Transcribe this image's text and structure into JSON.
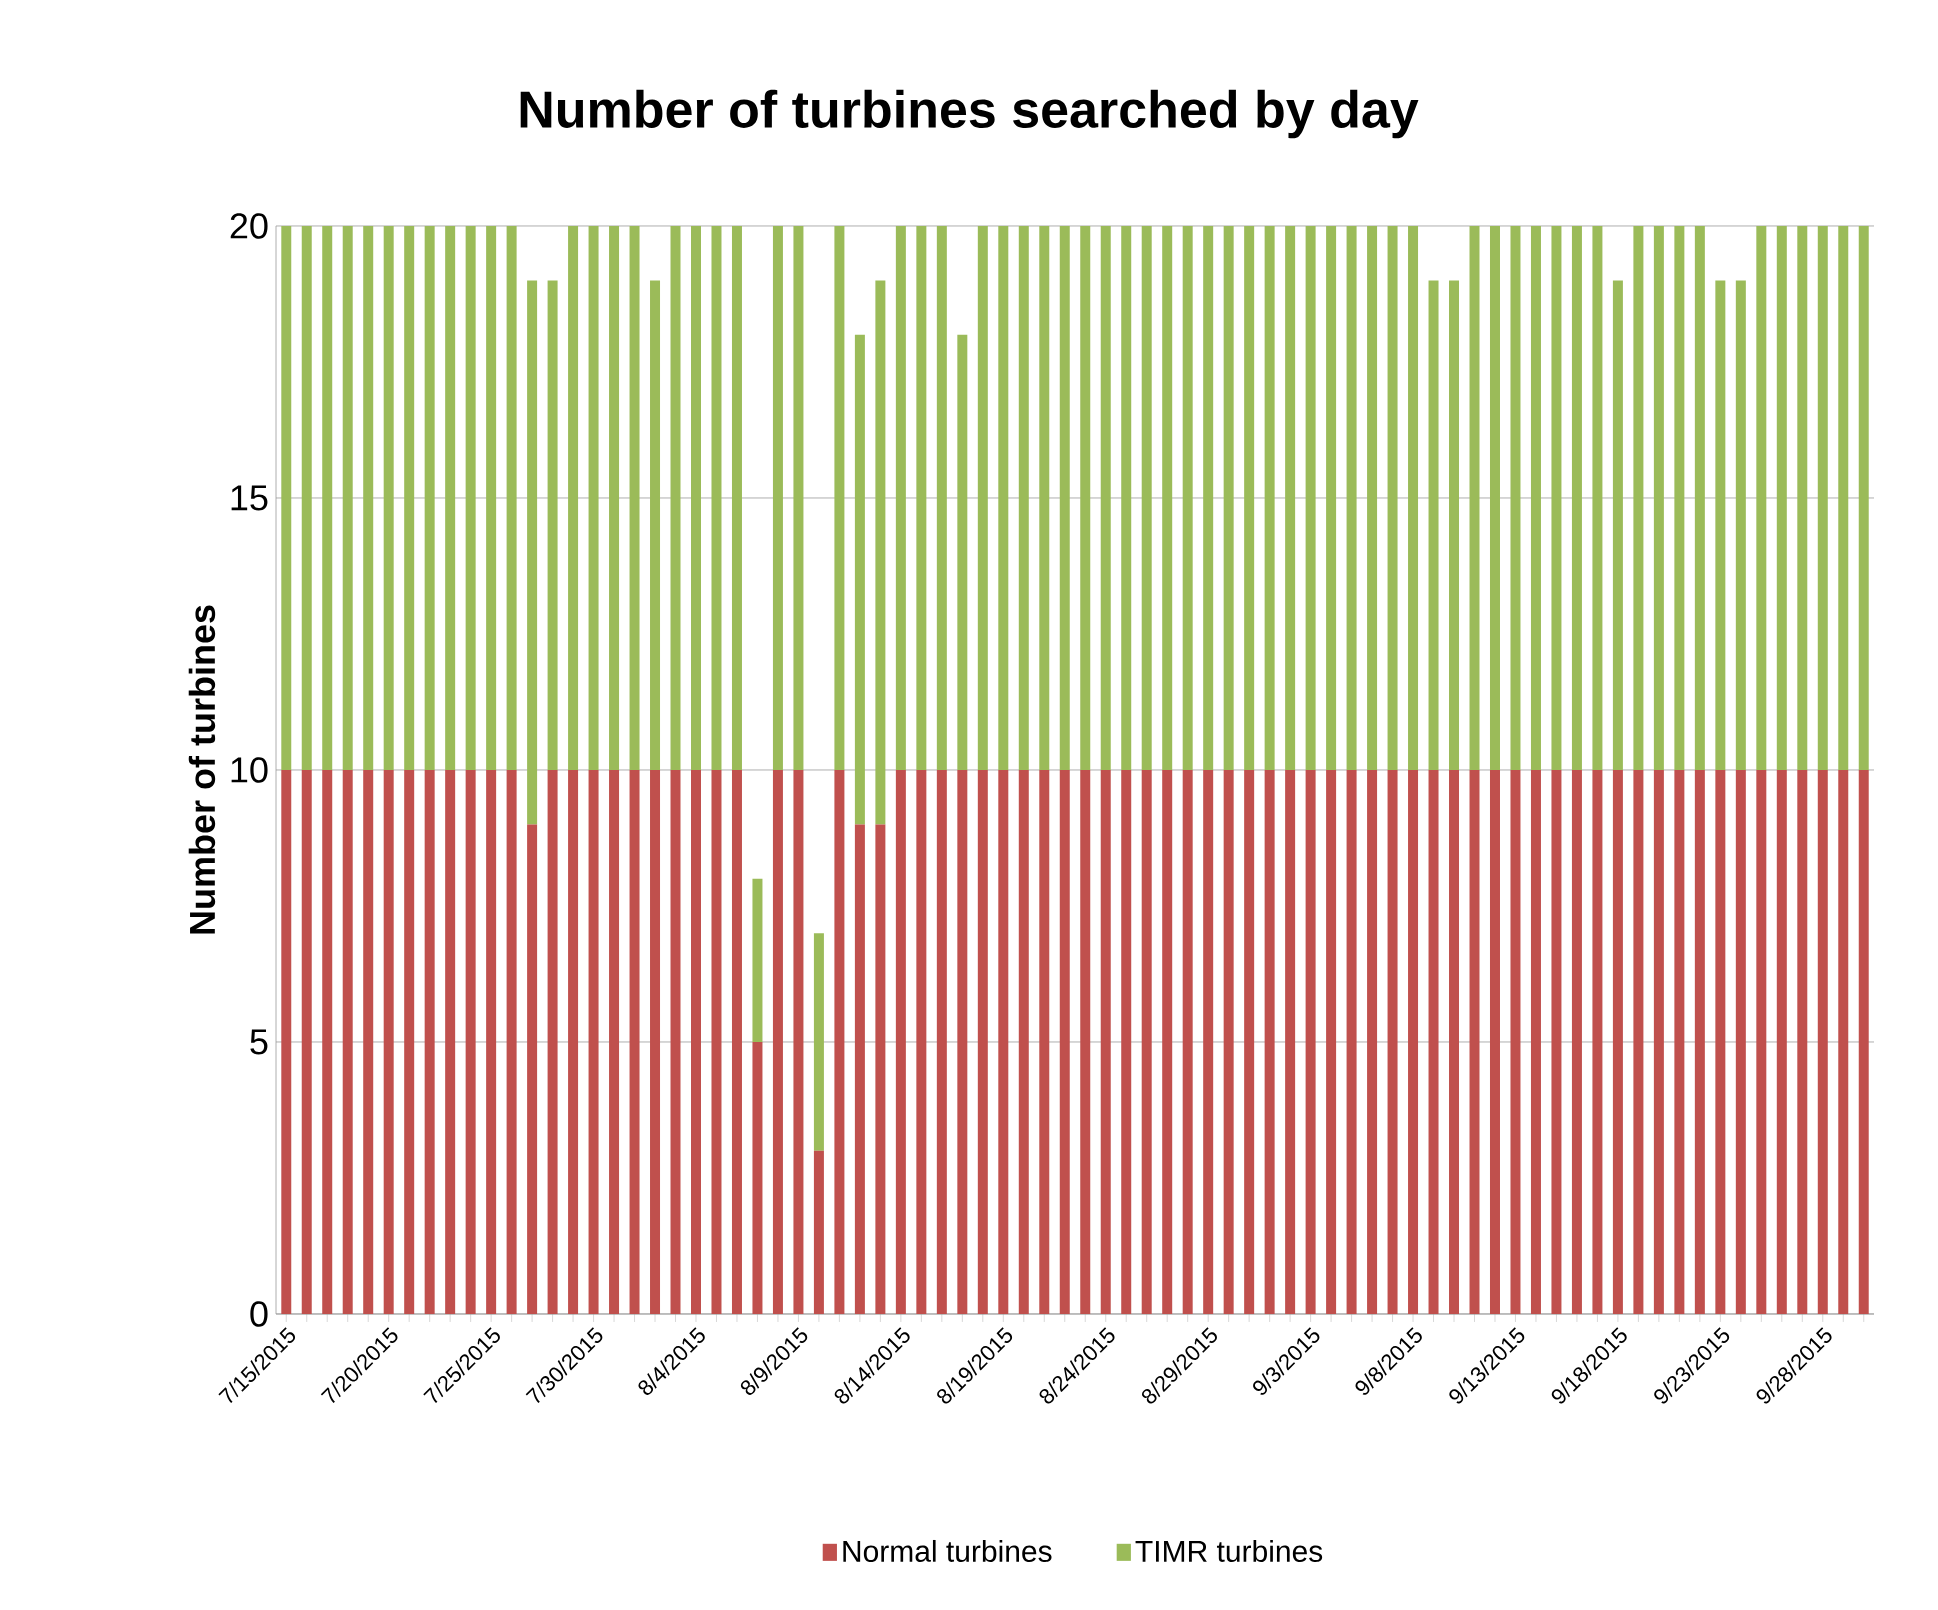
{
  "chart_data": {
    "type": "bar",
    "stacked": true,
    "title": "Number of turbines searched by day",
    "ylabel": "Number of turbines",
    "categories": [
      "7/15/2015",
      null,
      null,
      null,
      null,
      "7/20/2015",
      null,
      null,
      null,
      null,
      "7/25/2015",
      null,
      null,
      null,
      null,
      "7/30/2015",
      null,
      null,
      null,
      null,
      "8/4/2015",
      null,
      null,
      null,
      null,
      "8/9/2015",
      null,
      null,
      null,
      null,
      "8/14/2015",
      null,
      null,
      null,
      null,
      "8/19/2015",
      null,
      null,
      null,
      null,
      "8/24/2015",
      null,
      null,
      null,
      null,
      "8/29/2015",
      null,
      null,
      null,
      null,
      "9/3/2015",
      null,
      null,
      null,
      null,
      "9/8/2015",
      null,
      null,
      null,
      null,
      "9/13/2015",
      null,
      null,
      null,
      null,
      "9/18/2015",
      null,
      null,
      null,
      null,
      "9/23/2015",
      null,
      null,
      null,
      null,
      "9/28/2015",
      null,
      null
    ],
    "series": [
      {
        "name": "Normal turbines",
        "color": "#c0504d",
        "values": [
          10,
          10,
          10,
          10,
          10,
          10,
          10,
          10,
          10,
          10,
          10,
          10,
          9,
          10,
          10,
          10,
          10,
          10,
          10,
          10,
          10,
          10,
          10,
          5,
          10,
          10,
          3,
          10,
          9,
          9,
          10,
          10,
          10,
          10,
          10,
          10,
          10,
          10,
          10,
          10,
          10,
          10,
          10,
          10,
          10,
          10,
          10,
          10,
          10,
          10,
          10,
          10,
          10,
          10,
          10,
          10,
          10,
          10,
          10,
          10,
          10,
          10,
          10,
          10,
          10,
          10,
          10,
          10,
          10,
          10,
          10,
          10,
          10,
          10,
          10,
          10,
          10,
          10
        ]
      },
      {
        "name": "TIMR turbines",
        "color": "#9bbb59",
        "values": [
          10,
          10,
          10,
          10,
          10,
          10,
          10,
          10,
          10,
          10,
          10,
          10,
          10,
          9,
          10,
          10,
          10,
          10,
          9,
          10,
          10,
          10,
          10,
          3,
          10,
          10,
          4,
          10,
          9,
          10,
          10,
          10,
          10,
          8,
          10,
          10,
          10,
          10,
          10,
          10,
          10,
          10,
          10,
          10,
          10,
          10,
          10,
          10,
          10,
          10,
          10,
          10,
          10,
          10,
          10,
          10,
          9,
          9,
          10,
          10,
          10,
          10,
          10,
          10,
          10,
          9,
          10,
          10,
          10,
          10,
          9,
          9,
          10,
          10,
          10,
          10,
          10,
          10
        ]
      }
    ],
    "ylim": [
      0,
      20
    ],
    "yticks": [
      0,
      5,
      10,
      15,
      20
    ],
    "grid": "y",
    "legend": "bottom"
  }
}
